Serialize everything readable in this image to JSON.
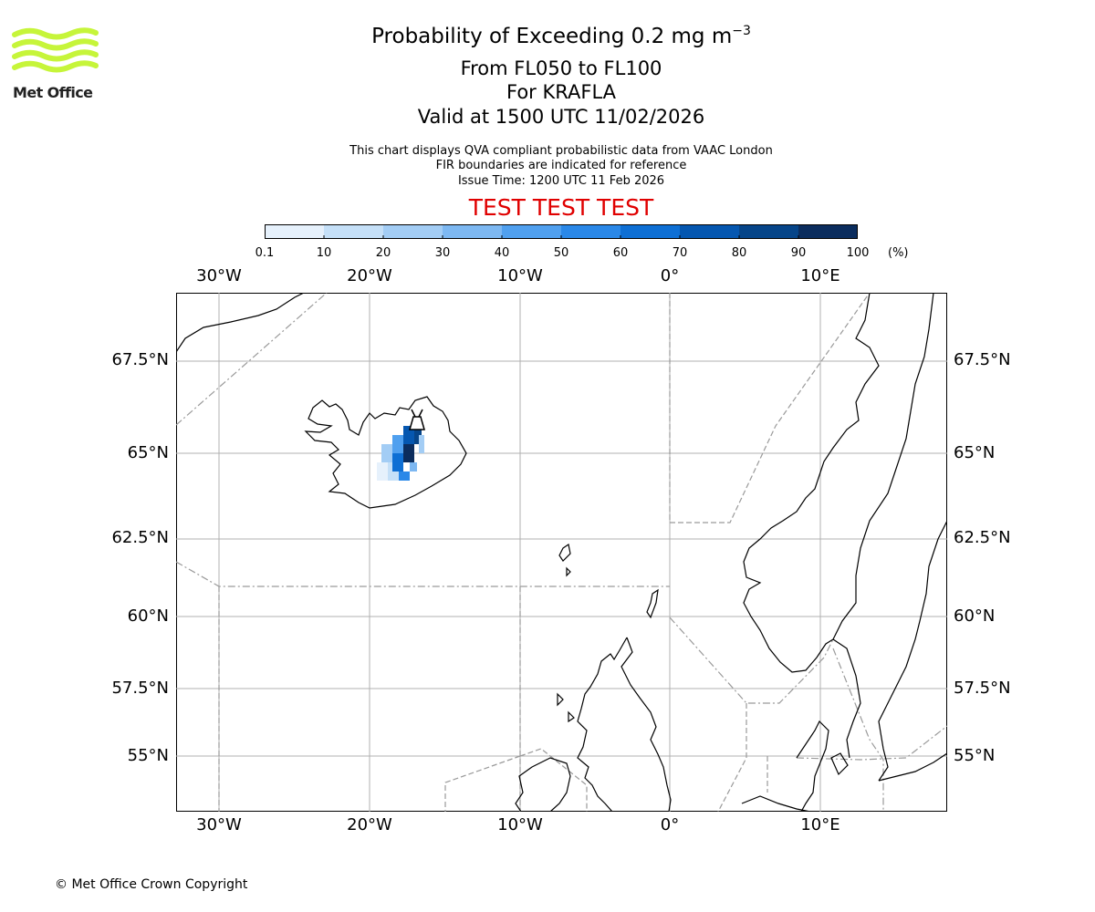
{
  "header": {
    "title_prefix": "Probability of Exceeding 0.2 mg m",
    "title_sup": "−3",
    "line2": "From FL050 to FL100",
    "line3": "For KRAFLA",
    "line4": "Valid at 1500 UTC 11/02/2026",
    "note1": "This chart displays QVA compliant probabilistic data from VAAC London",
    "note2": "FIR boundaries are indicated for reference",
    "note3": "Issue Time: 1200 UTC 11 Feb 2026",
    "test_banner": "TEST TEST TEST",
    "test_color": "#e00000"
  },
  "logo": {
    "text": "Met Office",
    "icon": "met-office-wave-logo",
    "color": "#c6f53a"
  },
  "colorbar": {
    "ticks": [
      "0.1",
      "10",
      "20",
      "30",
      "40",
      "50",
      "60",
      "70",
      "80",
      "90",
      "100"
    ],
    "unit": "(%)",
    "colors": [
      "#e6f1fc",
      "#c5e0f8",
      "#a3cdf5",
      "#7db8f2",
      "#50a0ef",
      "#2a88e8",
      "#0e6fd4",
      "#0557b0",
      "#064589",
      "#0b2d5e"
    ]
  },
  "map": {
    "lon_labels": [
      "30°W",
      "20°W",
      "10°W",
      "0°",
      "10°E"
    ],
    "lat_labels": [
      "67.5°N",
      "65°N",
      "62.5°N",
      "60°N",
      "57.5°N",
      "55°N"
    ],
    "volcano": {
      "name_marker": "volcano-icon"
    }
  },
  "footer": {
    "copyright": "© Met Office Crown Copyright"
  }
}
